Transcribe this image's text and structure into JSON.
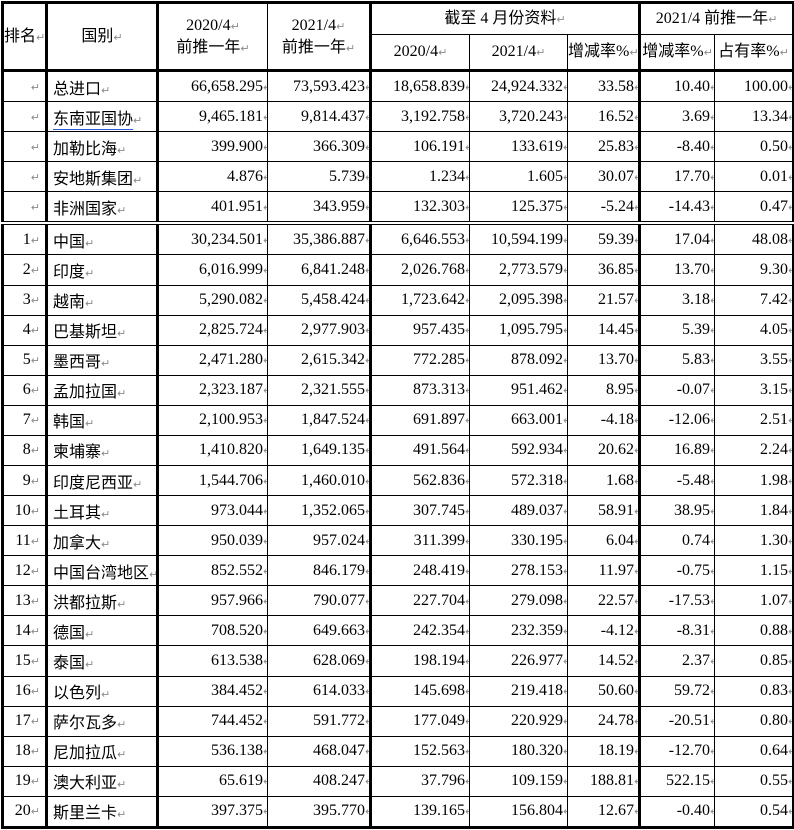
{
  "header": {
    "rank": "排名",
    "country": "国别",
    "prev2020_line1": "2020/4",
    "prev2020_line2": "前推一年",
    "prev2021_line1": "2021/4",
    "prev2021_line2": "前推一年",
    "group_april": "截至 4 月份资料",
    "group_prev_year": "2021/4 前推一年",
    "sub_2020": "2020/4",
    "sub_2021": "2021/4",
    "sub_change_april": "增减率%",
    "sub_change_prev": "增减率%",
    "sub_share": "占有率%"
  },
  "marks": {
    "cell_end": "↵"
  },
  "colors": {
    "border": "#000000",
    "text": "#000000",
    "mark_gray": "#8a8a8a",
    "grammar_underline_blue": "#2b5cd9",
    "background": "#ffffff"
  },
  "rows": [
    {
      "rank": "",
      "country": "总进口",
      "grammar_underline": false,
      "divider_below": false,
      "values": [
        "66,658.295",
        "73,593.423",
        "18,658.839",
        "24,924.332",
        "33.58",
        "10.40",
        "100.00"
      ]
    },
    {
      "rank": "",
      "country": "东南亚国协",
      "grammar_underline": true,
      "divider_below": false,
      "values": [
        "9,465.181",
        "9,814.437",
        "3,192.758",
        "3,720.243",
        "16.52",
        "3.69",
        "13.34"
      ]
    },
    {
      "rank": "",
      "country": "加勒比海",
      "grammar_underline": false,
      "divider_below": false,
      "values": [
        "399.900",
        "366.309",
        "106.191",
        "133.619",
        "25.83",
        "-8.40",
        "0.50"
      ]
    },
    {
      "rank": "",
      "country": "安地斯集团",
      "grammar_underline": false,
      "divider_below": false,
      "values": [
        "4.876",
        "5.739",
        "1.234",
        "1.605",
        "30.07",
        "17.70",
        "0.01"
      ]
    },
    {
      "rank": "",
      "country": "非洲国家",
      "grammar_underline": false,
      "divider_below": true,
      "values": [
        "401.951",
        "343.959",
        "132.303",
        "125.375",
        "-5.24",
        "-14.43",
        "0.47"
      ]
    },
    {
      "rank": "1",
      "country": "中国",
      "grammar_underline": false,
      "divider_below": false,
      "values": [
        "30,234.501",
        "35,386.887",
        "6,646.553",
        "10,594.199",
        "59.39",
        "17.04",
        "48.08"
      ]
    },
    {
      "rank": "2",
      "country": "印度",
      "grammar_underline": false,
      "divider_below": false,
      "values": [
        "6,016.999",
        "6,841.248",
        "2,026.768",
        "2,773.579",
        "36.85",
        "13.70",
        "9.30"
      ]
    },
    {
      "rank": "3",
      "country": "越南",
      "grammar_underline": false,
      "divider_below": false,
      "values": [
        "5,290.082",
        "5,458.424",
        "1,723.642",
        "2,095.398",
        "21.57",
        "3.18",
        "7.42"
      ]
    },
    {
      "rank": "4",
      "country": "巴基斯坦",
      "grammar_underline": false,
      "divider_below": false,
      "values": [
        "2,825.724",
        "2,977.903",
        "957.435",
        "1,095.795",
        "14.45",
        "5.39",
        "4.05"
      ]
    },
    {
      "rank": "5",
      "country": "墨西哥",
      "grammar_underline": false,
      "divider_below": false,
      "values": [
        "2,471.280",
        "2,615.342",
        "772.285",
        "878.092",
        "13.70",
        "5.83",
        "3.55"
      ]
    },
    {
      "rank": "6",
      "country": "孟加拉国",
      "grammar_underline": false,
      "divider_below": false,
      "values": [
        "2,323.187",
        "2,321.555",
        "873.313",
        "951.462",
        "8.95",
        "-0.07",
        "3.15"
      ]
    },
    {
      "rank": "7",
      "country": "韩国",
      "grammar_underline": false,
      "divider_below": false,
      "values": [
        "2,100.953",
        "1,847.524",
        "691.897",
        "663.001",
        "-4.18",
        "-12.06",
        "2.51"
      ]
    },
    {
      "rank": "8",
      "country": "柬埔寨",
      "grammar_underline": false,
      "divider_below": false,
      "values": [
        "1,410.820",
        "1,649.135",
        "491.564",
        "592.934",
        "20.62",
        "16.89",
        "2.24"
      ]
    },
    {
      "rank": "9",
      "country": "印度尼西亚",
      "grammar_underline": false,
      "divider_below": false,
      "values": [
        "1,544.706",
        "1,460.010",
        "562.836",
        "572.318",
        "1.68",
        "-5.48",
        "1.98"
      ]
    },
    {
      "rank": "10",
      "country": "土耳其",
      "grammar_underline": false,
      "divider_below": false,
      "values": [
        "973.044",
        "1,352.065",
        "307.745",
        "489.037",
        "58.91",
        "38.95",
        "1.84"
      ]
    },
    {
      "rank": "11",
      "country": "加拿大",
      "grammar_underline": false,
      "divider_below": false,
      "values": [
        "950.039",
        "957.024",
        "311.399",
        "330.195",
        "6.04",
        "0.74",
        "1.30"
      ]
    },
    {
      "rank": "12",
      "country": "中国台湾地区",
      "grammar_underline": false,
      "divider_below": false,
      "values": [
        "852.552",
        "846.179",
        "248.419",
        "278.153",
        "11.97",
        "-0.75",
        "1.15"
      ]
    },
    {
      "rank": "13",
      "country": "洪都拉斯",
      "grammar_underline": false,
      "divider_below": false,
      "values": [
        "957.966",
        "790.077",
        "227.704",
        "279.098",
        "22.57",
        "-17.53",
        "1.07"
      ]
    },
    {
      "rank": "14",
      "country": "德国",
      "grammar_underline": false,
      "divider_below": false,
      "values": [
        "708.520",
        "649.663",
        "242.354",
        "232.359",
        "-4.12",
        "-8.31",
        "0.88"
      ]
    },
    {
      "rank": "15",
      "country": "泰国",
      "grammar_underline": false,
      "divider_below": false,
      "values": [
        "613.538",
        "628.069",
        "198.194",
        "226.977",
        "14.52",
        "2.37",
        "0.85"
      ]
    },
    {
      "rank": "16",
      "country": "以色列",
      "grammar_underline": false,
      "divider_below": false,
      "values": [
        "384.452",
        "614.033",
        "145.698",
        "219.418",
        "50.60",
        "59.72",
        "0.83"
      ]
    },
    {
      "rank": "17",
      "country": "萨尔瓦多",
      "grammar_underline": false,
      "divider_below": false,
      "values": [
        "744.452",
        "591.772",
        "177.049",
        "220.929",
        "24.78",
        "-20.51",
        "0.80"
      ]
    },
    {
      "rank": "18",
      "country": "尼加拉瓜",
      "grammar_underline": false,
      "divider_below": false,
      "values": [
        "536.138",
        "468.047",
        "152.563",
        "180.320",
        "18.19",
        "-12.70",
        "0.64"
      ]
    },
    {
      "rank": "19",
      "country": "澳大利亚",
      "grammar_underline": false,
      "divider_below": false,
      "values": [
        "65.619",
        "408.247",
        "37.796",
        "109.159",
        "188.81",
        "522.15",
        "0.55"
      ]
    },
    {
      "rank": "20",
      "country": "斯里兰卡",
      "grammar_underline": false,
      "divider_below": false,
      "values": [
        "397.375",
        "395.770",
        "139.165",
        "156.804",
        "12.67",
        "-0.40",
        "0.54"
      ]
    }
  ]
}
